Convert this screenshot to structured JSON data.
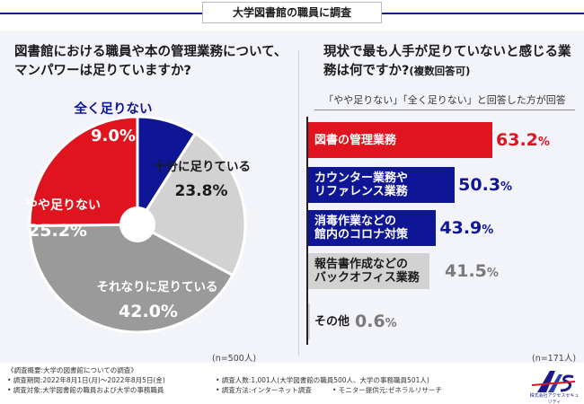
{
  "header": {
    "tab_title": "大学図書館の職員に調査"
  },
  "colors": {
    "navy": "#0f1696",
    "red": "#e0141e",
    "light_gray": "#d2d2d2",
    "dark_gray": "#9a9a9a",
    "panel_bg": "#f3f4fa"
  },
  "left": {
    "question": "図書館における職員や本の管理業務について、\nマンパワーは足りていますか?",
    "n_label": "(n=500人)"
  },
  "right": {
    "question_main": "現状で最も人手が足りていないと感じる業務は何ですか?",
    "question_note": "(複数回答可)",
    "subtitle": "「やや足りない」「全く足りない」と回答した方が回答",
    "n_label": "(n=171人)"
  },
  "chart_data": [
    {
      "type": "pie",
      "title": "",
      "slices": [
        {
          "label": "全く足りない",
          "value": 9.0,
          "value_text": "9.0%",
          "color": "#0f1696"
        },
        {
          "label": "十分に足りている",
          "value": 23.8,
          "value_text": "23.8%",
          "color": "#d2d2d2"
        },
        {
          "label": "それなりに足りている",
          "value": 42.0,
          "value_text": "42.0%",
          "color": "#9a9a9a"
        },
        {
          "label": "やや足りない",
          "value": 25.2,
          "value_text": "25.2%",
          "color": "#e0141e"
        }
      ]
    },
    {
      "type": "bar",
      "orientation": "horizontal",
      "title": "",
      "xlim": [
        0,
        70
      ],
      "categories": [
        "図書の管理業務",
        "カウンター業務や\nリファレンス業務",
        "消毒作業などの\n館内のコロナ対策",
        "報告書作成などの\nバックオフィス業務",
        "その他"
      ],
      "values": [
        63.2,
        50.3,
        43.9,
        41.5,
        0.6
      ],
      "value_numbers": [
        "63.2",
        "50.3",
        "43.9",
        "41.5",
        "0.6"
      ],
      "value_unit": "%",
      "colors": [
        "#e0141e",
        "#0f1696",
        "#0f1696",
        "#d2d2d2",
        "#d2d2d2"
      ]
    }
  ],
  "footer": {
    "heading": "《調査概要:大学の図書館についての調査》",
    "period": "• 調査期間:2022年8月1日(月)〜2022年8月5日(金)",
    "target": "• 調査対象:大学図書館の職員および大学の事務職員",
    "sample": "• 調査人数:1,001人(大学図書館の職員500人、大学の事務職員501人)",
    "method": "• 調査方法:インターネット調査",
    "monitor": "• モニター提供元:ゼネラルリサーチ"
  },
  "logo": {
    "text": "株式会社アクセスセキュリティ",
    "icon": "company-logo-icon"
  }
}
